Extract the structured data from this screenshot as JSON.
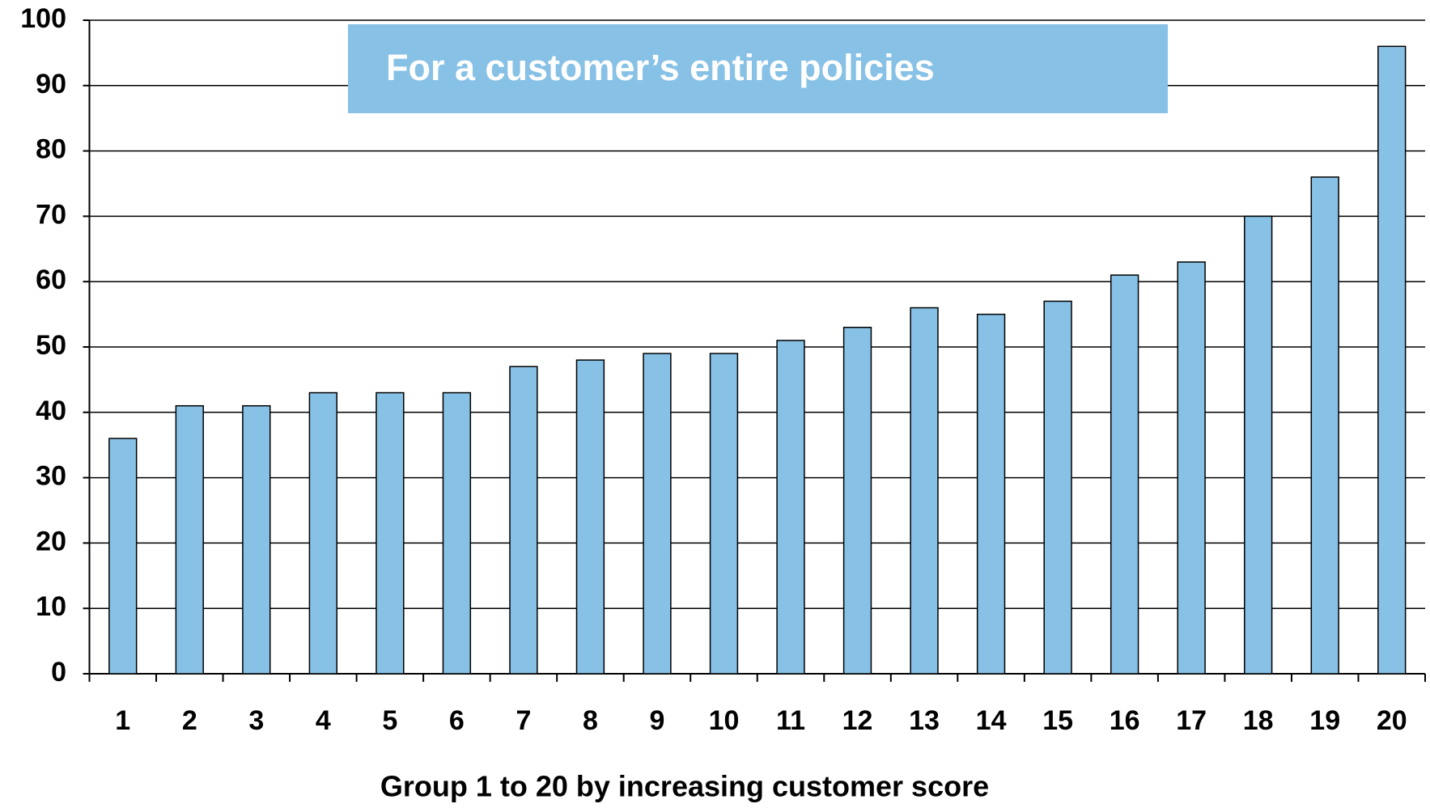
{
  "chart_data": {
    "type": "bar",
    "annotation": "For a customer’s entire policies",
    "xlabel": "Group 1 to 20 by increasing customer score",
    "categories": [
      "1",
      "2",
      "3",
      "4",
      "5",
      "6",
      "7",
      "8",
      "9",
      "10",
      "11",
      "12",
      "13",
      "14",
      "15",
      "16",
      "17",
      "18",
      "19",
      "20"
    ],
    "values": [
      36,
      41,
      41,
      43,
      43,
      43,
      47,
      48,
      49,
      49,
      51,
      53,
      56,
      55,
      57,
      61,
      63,
      70,
      76,
      96
    ],
    "color": "#87c1e6",
    "ylim": [
      0,
      100
    ],
    "yticks": [
      0,
      10,
      20,
      30,
      40,
      50,
      60,
      70,
      80,
      90,
      100
    ],
    "grid": true
  }
}
